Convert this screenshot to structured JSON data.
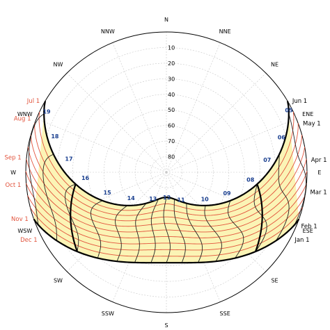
{
  "chart_data": {
    "type": "polar",
    "compass": [
      {
        "label": "N",
        "az": 0
      },
      {
        "label": "NNE",
        "az": 22.5
      },
      {
        "label": "NE",
        "az": 45
      },
      {
        "label": "ENE",
        "az": 67.5
      },
      {
        "label": "E",
        "az": 90
      },
      {
        "label": "ESE",
        "az": 112.5
      },
      {
        "label": "SE",
        "az": 135
      },
      {
        "label": "SSE",
        "az": 157.5
      },
      {
        "label": "S",
        "az": 180
      },
      {
        "label": "SSW",
        "az": 202.5
      },
      {
        "label": "SW",
        "az": 225
      },
      {
        "label": "WSW",
        "az": 247.5
      },
      {
        "label": "W",
        "az": 270
      },
      {
        "label": "WNW",
        "az": 292.5
      },
      {
        "label": "NW",
        "az": 315
      },
      {
        "label": "NNW",
        "az": 337.5
      }
    ],
    "ring_labels": [
      "10",
      "20",
      "30",
      "40",
      "50",
      "60",
      "70",
      "80"
    ],
    "hour_labels": [
      {
        "label": "05",
        "az": 63.0,
        "el": 2
      },
      {
        "label": "06",
        "az": 73.0,
        "el": 13
      },
      {
        "label": "07",
        "az": 83.0,
        "el": 25
      },
      {
        "label": "08",
        "az": 95.0,
        "el": 36
      },
      {
        "label": "09",
        "az": 109.0,
        "el": 49
      },
      {
        "label": "10",
        "az": 125.0,
        "el": 60
      },
      {
        "label": "11",
        "az": 152.0,
        "el": 70
      },
      {
        "label": "12",
        "az": 179.0,
        "el": 74
      },
      {
        "label": "13",
        "az": 207.0,
        "el": 71
      },
      {
        "label": "14",
        "az": 234.0,
        "el": 62
      },
      {
        "label": "15",
        "az": 251.0,
        "el": 50
      },
      {
        "label": "16",
        "az": 266.0,
        "el": 38
      },
      {
        "label": "17",
        "az": 278.0,
        "el": 27
      },
      {
        "label": "18",
        "az": 288.0,
        "el": 15
      },
      {
        "label": "19",
        "az": 297.0,
        "el": 4
      }
    ],
    "date_labels_right": [
      "Jun 1",
      "May 1",
      "Apr 1",
      "Mar 1",
      "Feb 1",
      "Jan 1"
    ],
    "date_labels_left": [
      "Jul 1",
      "Aug 1",
      "Sep 1",
      "Oct 1",
      "Nov 1",
      "Dec 1"
    ],
    "date_paths": [
      {
        "name": "Jun",
        "sunrise_az": 59.5,
        "max_el": 74.0
      },
      {
        "name": "May",
        "sunrise_az": 64.0,
        "max_el": 70.0
      },
      {
        "name": "Apr",
        "sunrise_az": 73.5,
        "max_el": 62.0
      },
      {
        "name": "Mar",
        "sunrise_az": 85.0,
        "max_el": 51.0
      },
      {
        "name": "Feb",
        "sunrise_az": 98.0,
        "max_el": 40.0
      },
      {
        "name": "Jan",
        "sunrise_az": 109.5,
        "max_el": 32.0
      }
    ],
    "colors": {
      "fill": "#fbf4b5",
      "date_line": "#e2533c",
      "hour_line": "#222222",
      "hour_label": "#1a3f8f",
      "date_label_red": "#e2533c",
      "date_label_black": "#000000",
      "grid": "#c8c8c8"
    }
  }
}
